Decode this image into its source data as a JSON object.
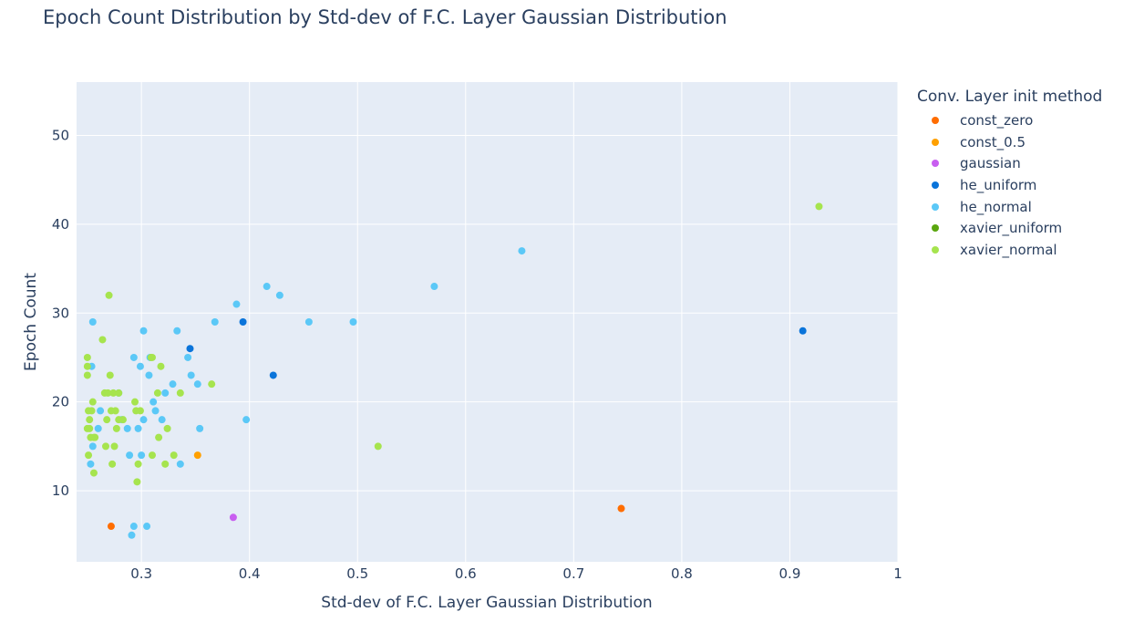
{
  "chart_data": {
    "type": "scatter",
    "title": "Epoch Count Distribution by Std-dev of F.C. Layer Gaussian Distribution",
    "xlabel": "Std-dev of F.C. Layer Gaussian Distribution",
    "ylabel": "Epoch Count",
    "xlim": [
      0.24,
      1.0
    ],
    "ylim": [
      2,
      56
    ],
    "x_ticks": [
      0.3,
      0.4,
      0.5,
      0.6,
      0.7,
      0.8,
      0.9,
      1
    ],
    "x_tick_labels": [
      "0.3",
      "0.4",
      "0.5",
      "0.6",
      "0.7",
      "0.8",
      "0.9",
      "1"
    ],
    "y_ticks": [
      10,
      20,
      30,
      40,
      50
    ],
    "y_tick_labels": [
      "10",
      "20",
      "30",
      "40",
      "50"
    ],
    "grid": true,
    "background": "#e5ecf6",
    "legend_title": "Conv. Layer init method",
    "legend_position": "right",
    "series": [
      {
        "name": "const_zero",
        "color": "#ff6d00",
        "x": [
          0.272,
          0.744
        ],
        "y": [
          6,
          8
        ]
      },
      {
        "name": "const_0.5",
        "color": "#ffa000",
        "x": [
          0.352
        ],
        "y": [
          14
        ]
      },
      {
        "name": "gaussian",
        "color": "#c85ef0",
        "x": [
          0.385
        ],
        "y": [
          7
        ]
      },
      {
        "name": "he_uniform",
        "color": "#0a74da",
        "x": [
          0.345,
          0.394,
          0.422,
          0.912
        ],
        "y": [
          26,
          29,
          23,
          28
        ]
      },
      {
        "name": "he_normal",
        "color": "#5bc8f7",
        "x": [
          0.255,
          0.254,
          0.253,
          0.255,
          0.26,
          0.262,
          0.279,
          0.282,
          0.287,
          0.289,
          0.291,
          0.293,
          0.293,
          0.297,
          0.299,
          0.3,
          0.302,
          0.302,
          0.305,
          0.307,
          0.308,
          0.311,
          0.313,
          0.319,
          0.322,
          0.329,
          0.333,
          0.336,
          0.343,
          0.346,
          0.352,
          0.354,
          0.368,
          0.388,
          0.397,
          0.416,
          0.428,
          0.455,
          0.496,
          0.571,
          0.652
        ],
        "y": [
          29,
          24,
          13,
          15,
          17,
          19,
          21,
          18,
          17,
          14,
          5,
          6,
          25,
          17,
          24,
          14,
          28,
          18,
          6,
          23,
          25,
          20,
          19,
          18,
          21,
          22,
          28,
          13,
          25,
          23,
          22,
          17,
          29,
          31,
          18,
          33,
          32,
          29,
          29,
          33,
          37
        ]
      },
      {
        "name": "xavier_uniform",
        "color": "#5aa60e",
        "x": [],
        "y": []
      },
      {
        "name": "xavier_normal",
        "color": "#a6e44e",
        "x": [
          0.25,
          0.25,
          0.25,
          0.25,
          0.251,
          0.251,
          0.252,
          0.252,
          0.253,
          0.254,
          0.255,
          0.256,
          0.256,
          0.257,
          0.264,
          0.266,
          0.267,
          0.268,
          0.269,
          0.27,
          0.271,
          0.272,
          0.273,
          0.274,
          0.275,
          0.276,
          0.277,
          0.279,
          0.279,
          0.283,
          0.294,
          0.295,
          0.296,
          0.297,
          0.299,
          0.309,
          0.31,
          0.31,
          0.315,
          0.316,
          0.318,
          0.322,
          0.324,
          0.33,
          0.336,
          0.365,
          0.519,
          0.927
        ],
        "y": [
          25,
          24,
          23,
          17,
          19,
          14,
          18,
          17,
          16,
          19,
          20,
          12,
          16,
          16,
          27,
          21,
          15,
          18,
          21,
          32,
          23,
          19,
          13,
          21,
          15,
          19,
          17,
          18,
          21,
          18,
          20,
          19,
          11,
          13,
          19,
          25,
          14,
          25,
          21,
          16,
          24,
          13,
          17,
          14,
          21,
          22,
          15,
          42
        ]
      }
    ]
  }
}
